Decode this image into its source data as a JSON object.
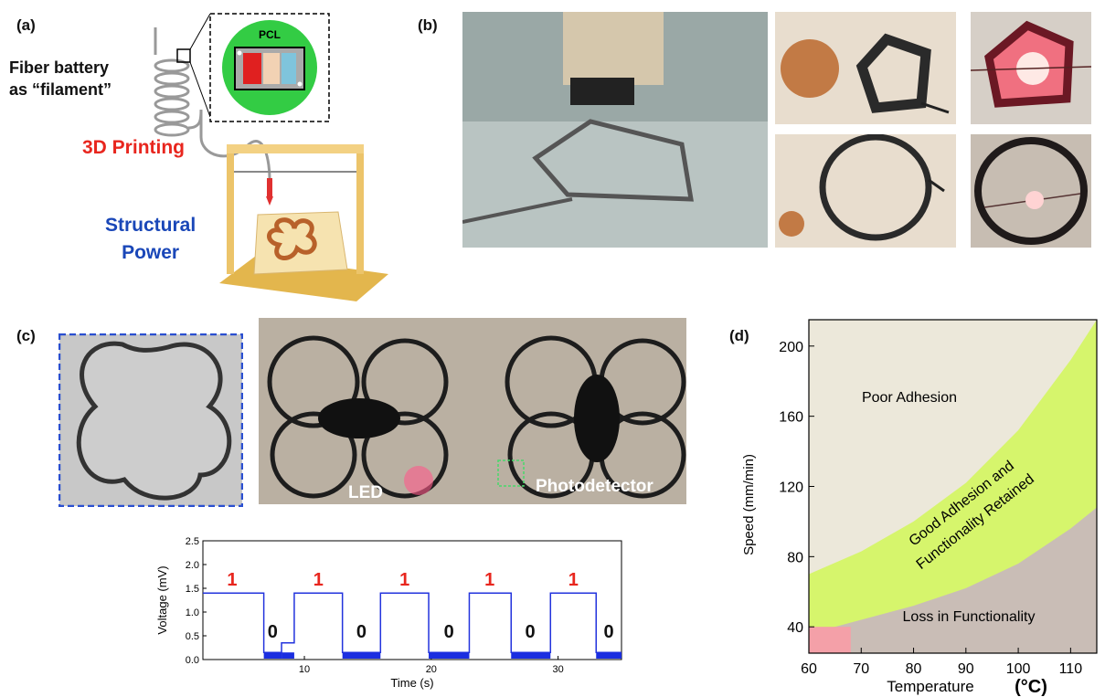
{
  "panels": {
    "a": {
      "label": "(a)",
      "fiber_line1": "Fiber battery",
      "fiber_line2": "as “filament”",
      "pcl": "PCL",
      "printing": "3D Printing",
      "structural": "Structural",
      "power": "Power"
    },
    "b": {
      "label": "(b)"
    },
    "c": {
      "label": "(c)",
      "led": "LED",
      "photodetector": "Photodetector",
      "voltage_chart": {
        "type": "line",
        "ylabel": "Voltage (mV)",
        "xlabel": "Time (s)",
        "yticks": [
          "0.0",
          "0.5",
          "1.0",
          "1.5",
          "2.0",
          "2.5"
        ],
        "xticks": [
          "10",
          "20",
          "30"
        ],
        "bits": [
          "1",
          "0",
          "1",
          "0",
          "1",
          "0",
          "1",
          "0",
          "1",
          "0"
        ]
      }
    },
    "d": {
      "label": "(d)",
      "poor": "Poor Adhesion",
      "good1": "Good Adhesion and",
      "good2": "Functionality Retained",
      "loss": "Loss in Functionality",
      "ylabel": "Speed (mm/min)",
      "xlabel": "Temperature",
      "xunit": "(°C)",
      "yticks": [
        "200",
        "160",
        "120",
        "80",
        "40"
      ],
      "xticks": [
        "60",
        "70",
        "80",
        "90",
        "100",
        "110"
      ]
    }
  },
  "chart_data": [
    {
      "type": "line",
      "title": "",
      "xlabel": "Time (s)",
      "ylabel": "Voltage (mV)",
      "xlim": [
        2,
        35
      ],
      "ylim": [
        0,
        2.5
      ],
      "series": [
        {
          "x": [
            2,
            6.8,
            6.8,
            8.2,
            8.2,
            9.2,
            9.2,
            13.0,
            13.0,
            16.0,
            16.0,
            19.8,
            19.8,
            23.0,
            23.0,
            26.3,
            26.3,
            29.4,
            29.4,
            33.0,
            33.0,
            35
          ],
          "y": [
            1.4,
            1.4,
            0.15,
            0.15,
            0.35,
            0.35,
            1.4,
            1.4,
            0.15,
            0.15,
            1.4,
            1.4,
            0.15,
            0.15,
            1.4,
            1.4,
            0.15,
            0.15,
            1.4,
            1.4,
            0.15,
            0.15
          ]
        }
      ],
      "annotations": [
        "1",
        "0",
        "1",
        "0",
        "1",
        "0",
        "1",
        "0",
        "1",
        "0"
      ]
    },
    {
      "type": "area",
      "title": "",
      "xlabel": "Temperature (°C)",
      "ylabel": "Speed (mm/min)",
      "xlim": [
        60,
        115
      ],
      "ylim": [
        25,
        215
      ],
      "regions": [
        {
          "name": "Poor Adhesion",
          "color": "#ece8da"
        },
        {
          "name": "Good Adhesion and Functionality Retained",
          "color": "#d6f56c",
          "upper_boundary": {
            "x": [
              60,
              70,
              80,
              90,
              100,
              110,
              115
            ],
            "y": [
              70,
              83,
              100,
              122,
              152,
              192,
              215
            ]
          }
        },
        {
          "name": "Loss in Functionality",
          "color": "#c9bdb6",
          "upper_boundary": {
            "x": [
              60,
              70,
              80,
              90,
              100,
              110,
              115
            ],
            "y": [
              36,
              44,
              52,
              62,
              76,
              96,
              108
            ]
          }
        },
        {
          "name": "",
          "color": "#f4a0a8",
          "x_range": [
            60,
            68
          ],
          "y_range": [
            25,
            40
          ]
        }
      ]
    }
  ]
}
